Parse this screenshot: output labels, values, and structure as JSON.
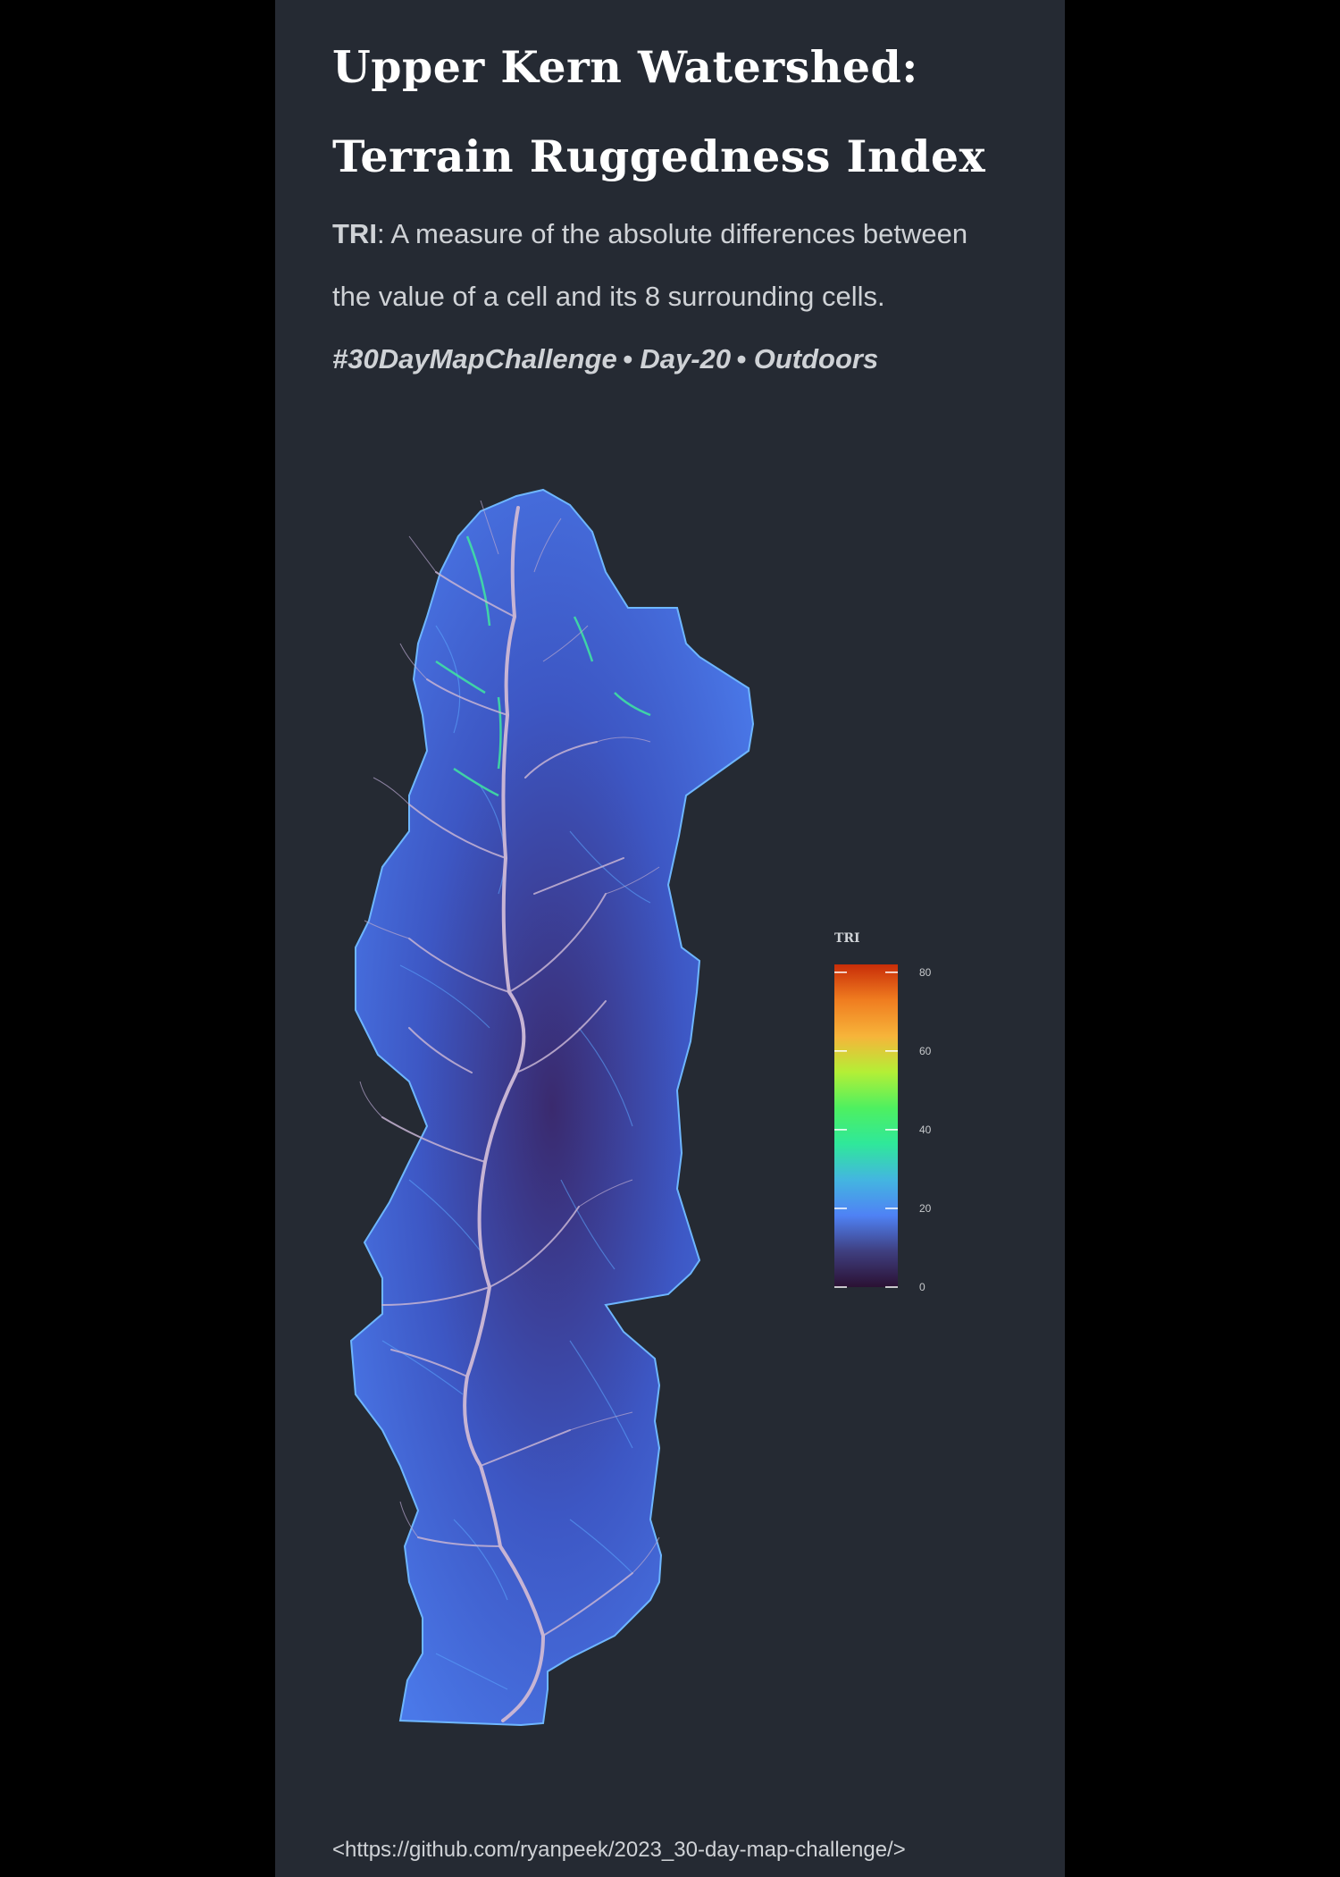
{
  "title": {
    "line1": "Upper Kern Watershed:",
    "line2": "Terrain Ruggedness Index"
  },
  "description": {
    "term": "TRI",
    "line1_rest": ":  A measure of the absolute differences between",
    "line2": "the value of a cell and its 8 surrounding cells."
  },
  "tagline": "#30DayMapChallenge •  Day-20 •  Outdoors",
  "legend": {
    "title": "TRI",
    "ticks": [
      {
        "value": 0,
        "label": "0"
      },
      {
        "value": 20,
        "label": "20"
      },
      {
        "value": 40,
        "label": "40"
      },
      {
        "value": 60,
        "label": "60"
      },
      {
        "value": 80,
        "label": "80"
      }
    ],
    "range": [
      0,
      82
    ],
    "colors": [
      "#2b1133",
      "#3f3f80",
      "#4f82f5",
      "#43b6e0",
      "#2fe89a",
      "#4ef060",
      "#b4ef36",
      "#f7b43a",
      "#f07d20",
      "#c82d08"
    ]
  },
  "colors": {
    "background": "#000000",
    "panel": "#252a33",
    "watershed_fill": "#3b4ab0",
    "ridge_highlight": "#5ca8ff",
    "stream": "#c7b4d4"
  },
  "source_url": "<https://github.com/ryanpeek/2023_30-day-map-challenge/>"
}
